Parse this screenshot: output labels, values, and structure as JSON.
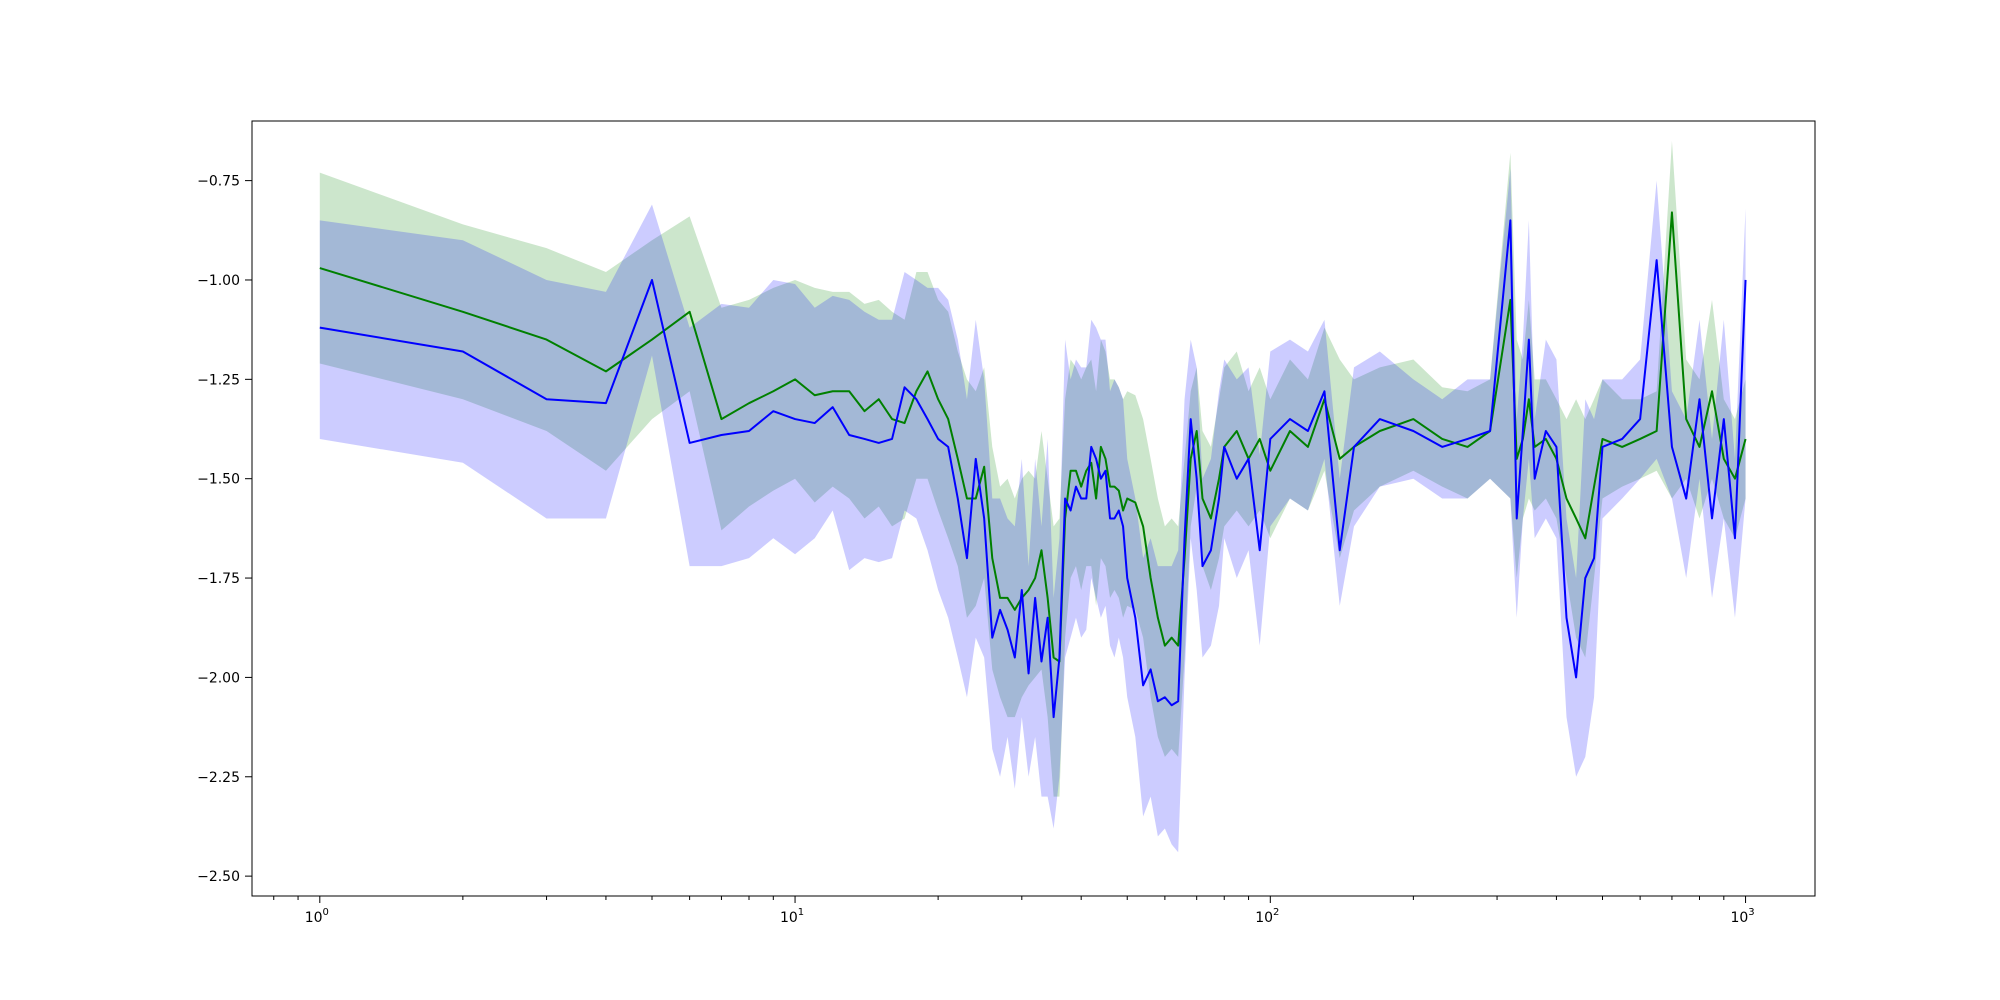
{
  "chart_data": {
    "type": "line",
    "title": "",
    "xlabel": "",
    "ylabel": "",
    "xscale": "log",
    "xlim": [
      0.72,
      1400
    ],
    "ylim": [
      -2.55,
      -0.6
    ],
    "grid": false,
    "legend": "none",
    "x_ticks": [
      1,
      10,
      100,
      1000
    ],
    "x_tick_labels": [
      {
        "base": "10",
        "exp": "0"
      },
      {
        "base": "10",
        "exp": "1"
      },
      {
        "base": "10",
        "exp": "2"
      },
      {
        "base": "10",
        "exp": "3"
      }
    ],
    "y_ticks": [
      -0.75,
      -1.0,
      -1.25,
      -1.5,
      -1.75,
      -2.0,
      -2.25,
      -2.5
    ],
    "y_tick_labels": [
      "−0.75",
      "−1.00",
      "−1.25",
      "−1.50",
      "−1.75",
      "−2.00",
      "−2.25",
      "−2.50"
    ],
    "series": [
      {
        "color": "#008000",
        "band_color": "#008000",
        "band_opacity": 0.2,
        "x": [
          1,
          2,
          3,
          4,
          5,
          6,
          7,
          8,
          9,
          10,
          11,
          12,
          13,
          14,
          15,
          16,
          17,
          18,
          19,
          20,
          21,
          22,
          23,
          24,
          25,
          26,
          27,
          28,
          29,
          30,
          31,
          32,
          33,
          34,
          35,
          36,
          37,
          38,
          39,
          40,
          41,
          42,
          43,
          44,
          45,
          46,
          47,
          48,
          49,
          50,
          52,
          54,
          56,
          58,
          60,
          62,
          64,
          66,
          68,
          70,
          72,
          75,
          78,
          80,
          85,
          90,
          95,
          100,
          110,
          120,
          130,
          140,
          150,
          170,
          200,
          230,
          260,
          290,
          320,
          330,
          340,
          350,
          360,
          380,
          400,
          420,
          440,
          460,
          480,
          500,
          550,
          600,
          650,
          700,
          750,
          800,
          850,
          900,
          950,
          1000
        ],
        "y": [
          -0.97,
          -1.08,
          -1.15,
          -1.23,
          -1.15,
          -1.08,
          -1.35,
          -1.31,
          -1.28,
          -1.25,
          -1.29,
          -1.28,
          -1.28,
          -1.33,
          -1.3,
          -1.35,
          -1.36,
          -1.28,
          -1.23,
          -1.3,
          -1.35,
          -1.45,
          -1.55,
          -1.55,
          -1.47,
          -1.7,
          -1.8,
          -1.8,
          -1.83,
          -1.8,
          -1.78,
          -1.75,
          -1.68,
          -1.8,
          -1.95,
          -1.96,
          -1.6,
          -1.48,
          -1.48,
          -1.52,
          -1.48,
          -1.46,
          -1.55,
          -1.42,
          -1.45,
          -1.52,
          -1.52,
          -1.53,
          -1.58,
          -1.55,
          -1.56,
          -1.62,
          -1.75,
          -1.85,
          -1.92,
          -1.9,
          -1.92,
          -1.7,
          -1.45,
          -1.38,
          -1.55,
          -1.6,
          -1.5,
          -1.42,
          -1.38,
          -1.45,
          -1.4,
          -1.48,
          -1.38,
          -1.42,
          -1.3,
          -1.45,
          -1.42,
          -1.38,
          -1.35,
          -1.4,
          -1.42,
          -1.38,
          -1.05,
          -1.45,
          -1.4,
          -1.3,
          -1.42,
          -1.4,
          -1.45,
          -1.55,
          -1.6,
          -1.65,
          -1.52,
          -1.4,
          -1.42,
          -1.4,
          -1.38,
          -0.83,
          -1.35,
          -1.42,
          -1.28,
          -1.45,
          -1.5,
          -1.4
        ],
        "lower": [
          -1.21,
          -1.3,
          -1.38,
          -1.48,
          -1.35,
          -1.28,
          -1.63,
          -1.57,
          -1.53,
          -1.5,
          -1.56,
          -1.52,
          -1.55,
          -1.6,
          -1.57,
          -1.62,
          -1.6,
          -1.5,
          -1.5,
          -1.58,
          -1.65,
          -1.72,
          -1.85,
          -1.82,
          -1.75,
          -1.98,
          -2.05,
          -2.1,
          -2.1,
          -2.05,
          -2.02,
          -2.0,
          -1.98,
          -2.1,
          -2.3,
          -2.3,
          -1.9,
          -1.75,
          -1.72,
          -1.78,
          -1.72,
          -1.72,
          -1.82,
          -1.7,
          -1.72,
          -1.8,
          -1.78,
          -1.8,
          -1.85,
          -1.82,
          -1.83,
          -1.9,
          -2.05,
          -2.15,
          -2.2,
          -2.18,
          -2.2,
          -1.95,
          -1.62,
          -1.52,
          -1.72,
          -1.78,
          -1.7,
          -1.62,
          -1.58,
          -1.62,
          -1.58,
          -1.65,
          -1.55,
          -1.58,
          -1.48,
          -1.7,
          -1.58,
          -1.52,
          -1.48,
          -1.52,
          -1.55,
          -1.5,
          -1.55,
          -1.75,
          -1.6,
          -1.55,
          -1.58,
          -1.55,
          -1.6,
          -1.75,
          -1.9,
          -1.95,
          -1.75,
          -1.55,
          -1.52,
          -1.5,
          -1.48,
          -1.55,
          -1.5,
          -1.6,
          -1.5,
          -1.6,
          -1.65,
          -1.55
        ],
        "upper": [
          -0.73,
          -0.86,
          -0.92,
          -0.98,
          -0.9,
          -0.84,
          -1.07,
          -1.05,
          -1.02,
          -1.0,
          -1.02,
          -1.03,
          -1.03,
          -1.06,
          -1.05,
          -1.08,
          -1.1,
          -0.98,
          -0.98,
          -1.05,
          -1.08,
          -1.18,
          -1.25,
          -1.28,
          -1.22,
          -1.42,
          -1.52,
          -1.5,
          -1.55,
          -1.5,
          -1.48,
          -1.5,
          -1.38,
          -1.5,
          -1.62,
          -1.6,
          -1.3,
          -1.2,
          -1.22,
          -1.25,
          -1.22,
          -1.2,
          -1.28,
          -1.15,
          -1.18,
          -1.25,
          -1.25,
          -1.27,
          -1.3,
          -1.28,
          -1.29,
          -1.35,
          -1.45,
          -1.55,
          -1.62,
          -1.6,
          -1.62,
          -1.45,
          -1.28,
          -1.22,
          -1.38,
          -1.42,
          -1.3,
          -1.22,
          -1.18,
          -1.28,
          -1.22,
          -1.3,
          -1.2,
          -1.25,
          -1.12,
          -1.2,
          -1.25,
          -1.22,
          -1.2,
          -1.27,
          -1.28,
          -1.25,
          -0.68,
          -1.15,
          -1.2,
          -1.05,
          -1.25,
          -1.25,
          -1.3,
          -1.35,
          -1.3,
          -1.35,
          -1.3,
          -1.25,
          -1.3,
          -1.3,
          -1.28,
          -0.65,
          -1.2,
          -1.25,
          -1.05,
          -1.3,
          -1.35,
          -1.25
        ]
      },
      {
        "color": "#0000ff",
        "band_color": "#0000ff",
        "band_opacity": 0.2,
        "x": [
          1,
          2,
          3,
          4,
          5,
          6,
          7,
          8,
          9,
          10,
          11,
          12,
          13,
          14,
          15,
          16,
          17,
          18,
          19,
          20,
          21,
          22,
          23,
          24,
          25,
          26,
          27,
          28,
          29,
          30,
          31,
          32,
          33,
          34,
          35,
          36,
          37,
          38,
          39,
          40,
          41,
          42,
          43,
          44,
          45,
          46,
          47,
          48,
          49,
          50,
          52,
          54,
          56,
          58,
          60,
          62,
          64,
          66,
          68,
          70,
          72,
          75,
          78,
          80,
          85,
          90,
          95,
          100,
          110,
          120,
          130,
          140,
          150,
          170,
          200,
          230,
          260,
          290,
          320,
          330,
          340,
          350,
          360,
          380,
          400,
          420,
          440,
          460,
          480,
          500,
          550,
          600,
          650,
          700,
          750,
          800,
          850,
          900,
          950,
          1000
        ],
        "y": [
          -1.12,
          -1.18,
          -1.3,
          -1.31,
          -1.0,
          -1.41,
          -1.39,
          -1.38,
          -1.33,
          -1.35,
          -1.36,
          -1.32,
          -1.39,
          -1.4,
          -1.41,
          -1.4,
          -1.27,
          -1.3,
          -1.35,
          -1.4,
          -1.42,
          -1.55,
          -1.7,
          -1.45,
          -1.6,
          -1.9,
          -1.83,
          -1.88,
          -1.95,
          -1.78,
          -1.99,
          -1.8,
          -1.96,
          -1.85,
          -2.1,
          -1.95,
          -1.55,
          -1.58,
          -1.52,
          -1.55,
          -1.55,
          -1.42,
          -1.45,
          -1.5,
          -1.48,
          -1.6,
          -1.6,
          -1.58,
          -1.62,
          -1.75,
          -1.85,
          -2.02,
          -1.98,
          -2.06,
          -2.05,
          -2.07,
          -2.06,
          -1.65,
          -1.35,
          -1.5,
          -1.72,
          -1.68,
          -1.55,
          -1.42,
          -1.5,
          -1.45,
          -1.68,
          -1.4,
          -1.35,
          -1.38,
          -1.28,
          -1.68,
          -1.42,
          -1.35,
          -1.38,
          -1.42,
          -1.4,
          -1.38,
          -0.85,
          -1.6,
          -1.38,
          -1.15,
          -1.5,
          -1.38,
          -1.42,
          -1.85,
          -2.0,
          -1.75,
          -1.7,
          -1.42,
          -1.4,
          -1.35,
          -0.95,
          -1.42,
          -1.55,
          -1.3,
          -1.6,
          -1.35,
          -1.65,
          -1.0
        ],
        "lower": [
          -1.4,
          -1.46,
          -1.6,
          -1.6,
          -1.19,
          -1.72,
          -1.72,
          -1.7,
          -1.65,
          -1.69,
          -1.65,
          -1.58,
          -1.73,
          -1.7,
          -1.71,
          -1.7,
          -1.58,
          -1.6,
          -1.68,
          -1.78,
          -1.85,
          -1.95,
          -2.05,
          -1.9,
          -1.95,
          -2.18,
          -2.25,
          -2.15,
          -2.28,
          -2.1,
          -2.25,
          -2.15,
          -2.3,
          -2.3,
          -2.38,
          -2.25,
          -1.95,
          -1.9,
          -1.85,
          -1.9,
          -1.88,
          -1.75,
          -1.8,
          -1.85,
          -1.82,
          -1.92,
          -1.95,
          -1.9,
          -1.95,
          -2.05,
          -2.15,
          -2.35,
          -2.3,
          -2.4,
          -2.38,
          -2.42,
          -2.44,
          -2.0,
          -1.65,
          -1.78,
          -1.95,
          -1.92,
          -1.82,
          -1.65,
          -1.75,
          -1.68,
          -1.92,
          -1.62,
          -1.55,
          -1.58,
          -1.45,
          -1.82,
          -1.62,
          -1.52,
          -1.5,
          -1.55,
          -1.55,
          -1.5,
          -1.55,
          -1.85,
          -1.6,
          -1.45,
          -1.65,
          -1.6,
          -1.65,
          -2.1,
          -2.25,
          -2.2,
          -2.05,
          -1.6,
          -1.55,
          -1.5,
          -1.45,
          -1.55,
          -1.75,
          -1.5,
          -1.8,
          -1.6,
          -1.85,
          -1.55
        ],
        "upper": [
          -0.85,
          -0.9,
          -1.0,
          -1.03,
          -0.81,
          -1.12,
          -1.06,
          -1.07,
          -1.0,
          -1.01,
          -1.07,
          -1.04,
          -1.05,
          -1.08,
          -1.1,
          -1.1,
          -0.98,
          -1.0,
          -1.02,
          -1.02,
          -1.05,
          -1.15,
          -1.3,
          -1.1,
          -1.25,
          -1.55,
          -1.55,
          -1.6,
          -1.62,
          -1.45,
          -1.72,
          -1.45,
          -1.62,
          -1.4,
          -1.8,
          -1.65,
          -1.15,
          -1.25,
          -1.2,
          -1.22,
          -1.22,
          -1.1,
          -1.12,
          -1.15,
          -1.15,
          -1.28,
          -1.25,
          -1.27,
          -1.3,
          -1.45,
          -1.55,
          -1.7,
          -1.65,
          -1.72,
          -1.72,
          -1.72,
          -1.68,
          -1.3,
          -1.15,
          -1.22,
          -1.5,
          -1.45,
          -1.28,
          -1.2,
          -1.25,
          -1.22,
          -1.44,
          -1.18,
          -1.15,
          -1.18,
          -1.1,
          -1.5,
          -1.22,
          -1.18,
          -1.25,
          -1.3,
          -1.25,
          -1.25,
          -0.72,
          -1.35,
          -1.15,
          -0.85,
          -1.35,
          -1.15,
          -1.2,
          -1.6,
          -1.75,
          -1.3,
          -1.35,
          -1.25,
          -1.25,
          -1.2,
          -0.75,
          -1.28,
          -1.35,
          -1.1,
          -1.4,
          -1.1,
          -1.45,
          -0.82
        ]
      }
    ]
  }
}
